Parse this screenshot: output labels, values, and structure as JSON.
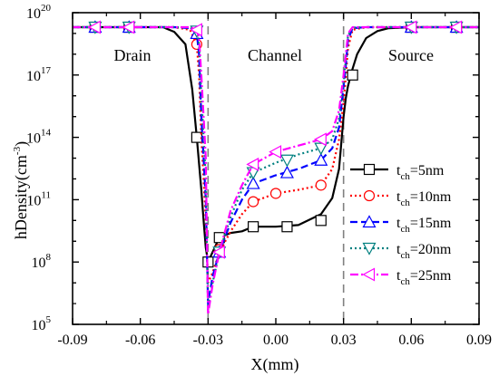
{
  "chart_data": {
    "type": "line",
    "xlabel": "X(mm)",
    "ylabel": "hDensity(cm",
    "ylabel_unit_exp": "-3",
    "ylabel_close": ")",
    "xlim": [
      -0.09,
      0.09
    ],
    "ylim": [
      100000,
      100000000000000000000
    ],
    "yscale": "log",
    "grid": false,
    "legend_position": "right-middle",
    "x_ticks": [
      -0.09,
      -0.06,
      -0.03,
      0.0,
      0.03,
      0.06,
      0.09
    ],
    "x_tick_labels": [
      "-0.09",
      "-0.06",
      "-0.03",
      "0.00",
      "0.03",
      "0.06",
      "0.09"
    ],
    "y_ticks": [
      100000,
      100000000,
      100000000000,
      100000000000000,
      100000000000000000,
      100000000000000000000
    ],
    "y_tick_base": "10",
    "y_tick_exponents": [
      "5",
      "8",
      "11",
      "14",
      "17",
      "20"
    ],
    "region_labels": [
      "Drain",
      "Channel",
      "Source"
    ],
    "boundaries_x": [
      -0.03,
      0.03
    ],
    "series": [
      {
        "name_main": "t",
        "name_sub": "ch",
        "name_rest": "=5nm",
        "color": "#000000",
        "dash": "solid",
        "marker": "square",
        "x": [
          -0.09,
          -0.07,
          -0.06,
          -0.05,
          -0.045,
          -0.04,
          -0.037,
          -0.035,
          -0.033,
          -0.032,
          -0.031,
          -0.03,
          -0.028,
          -0.025,
          -0.02,
          -0.015,
          -0.01,
          0.0,
          0.01,
          0.02,
          0.025,
          0.028,
          0.03,
          0.031,
          0.032,
          0.034,
          0.036,
          0.04,
          0.045,
          0.05,
          0.06,
          0.07,
          0.09
        ],
        "y": [
          2e+19,
          2e+19,
          2e+19,
          2e+19,
          1.2e+19,
          3e+18,
          2e+16,
          100000000000000.0,
          300000000000.0,
          10000000000.0,
          500000000.0,
          100000000.0,
          300000000.0,
          1500000000.0,
          2500000000.0,
          3000000000.0,
          5000000000.0,
          5000000000.0,
          6000000000.0,
          20000000000.0,
          120000000000.0,
          3000000000000.0,
          1000000000000000.0,
          8000000000000000.0,
          3e+16,
          2e+17,
          1e+18,
          6e+18,
          1.3e+19,
          1.8e+19,
          2e+19,
          2e+19,
          2e+19
        ],
        "marker_x": [
          -0.08,
          -0.065,
          -0.035,
          -0.03,
          -0.025,
          -0.01,
          0.005,
          0.02,
          0.034,
          0.06,
          0.08
        ],
        "marker_y": [
          2e+19,
          2e+19,
          100000000000000.0,
          100000000.0,
          1500000000.0,
          5000000000.0,
          5000000000.0,
          10000000000.0,
          1e+17,
          2e+19,
          2e+19
        ]
      },
      {
        "name_main": "t",
        "name_sub": "ch",
        "name_rest": "=10nm",
        "color": "#ff0000",
        "dash": "dot",
        "marker": "circle",
        "x": [
          -0.09,
          -0.06,
          -0.045,
          -0.038,
          -0.035,
          -0.034,
          -0.033,
          -0.032,
          -0.031,
          -0.03,
          -0.028,
          -0.025,
          -0.02,
          -0.015,
          -0.01,
          0.0,
          0.01,
          0.02,
          0.025,
          0.028,
          0.03,
          0.031,
          0.032,
          0.034,
          0.04,
          0.06,
          0.09
        ],
        "y": [
          2e+19,
          2e+19,
          2e+19,
          1.5e+19,
          3e+18,
          1e+17,
          100000000000000.0,
          1000000000000.0,
          10000000000.0,
          10000000.0,
          30000000.0,
          300000000.0,
          3000000000.0,
          20000000000.0,
          80000000000.0,
          200000000000.0,
          300000000000.0,
          500000000000.0,
          3000000000000.0,
          80000000000000.0,
          5000000000000000.0,
          1e+17,
          2e+18,
          1.5e+19,
          2e+19,
          2e+19,
          2e+19
        ],
        "marker_x": [
          -0.08,
          -0.065,
          -0.035,
          -0.025,
          -0.01,
          0.0,
          0.02,
          0.06,
          0.08
        ],
        "marker_y": [
          2e+19,
          2e+19,
          3e+18,
          400000000.0,
          80000000000.0,
          200000000000.0,
          500000000000.0,
          2e+19,
          2e+19
        ]
      },
      {
        "name_main": "t",
        "name_sub": "ch",
        "name_rest": "=15nm",
        "color": "#0000ff",
        "dash": "dash",
        "marker": "triangle-up",
        "x": [
          -0.09,
          -0.06,
          -0.045,
          -0.038,
          -0.035,
          -0.034,
          -0.033,
          -0.032,
          -0.031,
          -0.03,
          -0.028,
          -0.025,
          -0.02,
          -0.015,
          -0.01,
          0.0,
          0.01,
          0.02,
          0.025,
          0.028,
          0.03,
          0.031,
          0.032,
          0.034,
          0.04,
          0.06,
          0.09
        ],
        "y": [
          2e+19,
          2e+19,
          2e+19,
          1.8e+19,
          1e+19,
          1e+18,
          1000000000000000.0,
          10000000000000.0,
          100000000000.0,
          1000000.0,
          20000000.0,
          300000000.0,
          8000000000.0,
          100000000000.0,
          600000000000.0,
          1500000000000.0,
          3000000000000.0,
          8000000000000.0,
          30000000000000.0,
          300000000000000.0,
          3e+16,
          3e+17,
          5e+18,
          1.8e+19,
          2e+19,
          2e+19,
          2e+19
        ],
        "marker_x": [
          -0.08,
          -0.065,
          -0.035,
          -0.025,
          -0.01,
          0.005,
          0.02,
          0.06,
          0.08
        ],
        "marker_y": [
          2e+19,
          2e+19,
          1e+19,
          300000000.0,
          600000000000.0,
          2000000000000.0,
          8000000000000.0,
          2e+19,
          2e+19
        ]
      },
      {
        "name_main": "t",
        "name_sub": "ch",
        "name_rest": "=20nm",
        "color": "#008080",
        "dash": "dot",
        "marker": "triangle-down",
        "x": [
          -0.09,
          -0.06,
          -0.045,
          -0.038,
          -0.035,
          -0.034,
          -0.033,
          -0.032,
          -0.031,
          -0.03,
          -0.028,
          -0.025,
          -0.02,
          -0.015,
          -0.01,
          0.0,
          0.01,
          0.02,
          0.025,
          0.028,
          0.03,
          0.031,
          0.032,
          0.034,
          0.04,
          0.06,
          0.09
        ],
        "y": [
          2e+19,
          2e+19,
          2e+19,
          1.9e+19,
          1.3e+19,
          3e+18,
          1e+16,
          100000000000000.0,
          1000000000000.0,
          500000.0,
          10000000.0,
          300000000.0,
          15000000000.0,
          300000000000.0,
          2000000000000.0,
          6000000000000.0,
          15000000000000.0,
          30000000000000.0,
          80000000000000.0,
          800000000000000.0,
          5e+16,
          5e+17,
          8e+18,
          1.9e+19,
          2e+19,
          2e+19,
          2e+19
        ],
        "marker_x": [
          -0.08,
          -0.065,
          -0.035,
          -0.025,
          -0.01,
          0.005,
          0.02,
          0.06,
          0.08
        ],
        "marker_y": [
          2e+19,
          2e+19,
          1.3e+19,
          300000000.0,
          2000000000000.0,
          8000000000000.0,
          30000000000000.0,
          2e+19,
          2e+19
        ]
      },
      {
        "name_main": "t",
        "name_sub": "ch",
        "name_rest": "=25nm",
        "color": "#ff00ff",
        "dash": "dashdot",
        "marker": "triangle-left",
        "x": [
          -0.09,
          -0.06,
          -0.045,
          -0.038,
          -0.035,
          -0.034,
          -0.033,
          -0.032,
          -0.031,
          -0.03,
          -0.028,
          -0.025,
          -0.02,
          -0.015,
          -0.01,
          0.0,
          0.01,
          0.02,
          0.025,
          0.028,
          0.03,
          0.031,
          0.032,
          0.034,
          0.04,
          0.06,
          0.09
        ],
        "y": [
          2e+19,
          2e+19,
          2e+19,
          2e+19,
          1.5e+19,
          6e+18,
          1e+17,
          1000000000000000.0,
          10000000000000.0,
          300000.0,
          8000000.0,
          300000000.0,
          30000000000.0,
          500000000000.0,
          5000000000000.0,
          20000000000000.0,
          40000000000000.0,
          80000000000000.0,
          200000000000000.0,
          2000000000000000.0,
          1e+17,
          1e+18,
          1e+19,
          2e+19,
          2e+19,
          2e+19,
          2e+19
        ],
        "marker_x": [
          -0.08,
          -0.065,
          -0.035,
          -0.025,
          -0.01,
          0.0,
          0.02,
          0.06,
          0.08
        ],
        "marker_y": [
          2e+19,
          2e+19,
          1.5e+19,
          300000000.0,
          5000000000000.0,
          20000000000000.0,
          80000000000000.0,
          2e+19,
          2e+19
        ]
      }
    ]
  }
}
